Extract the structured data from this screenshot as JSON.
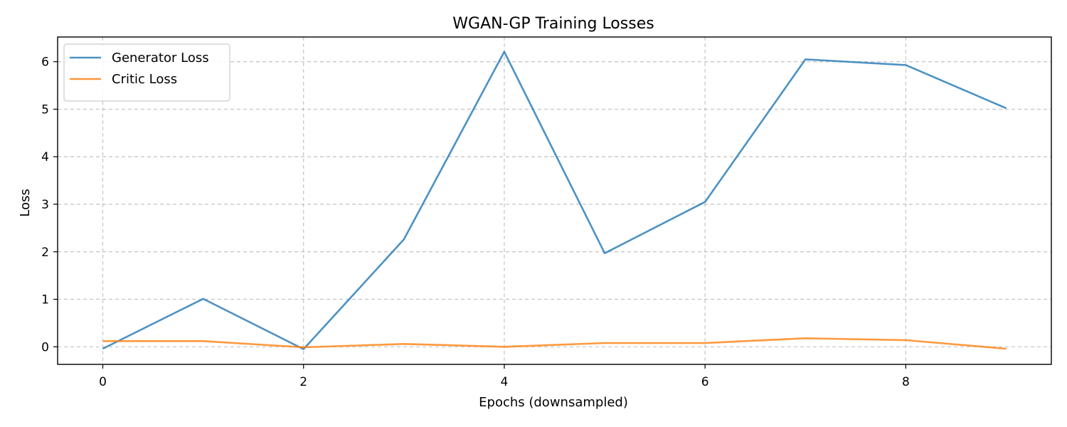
{
  "chart_data": {
    "type": "line",
    "title": "WGAN-GP Training Losses",
    "xlabel": "Epochs (downsampled)",
    "ylabel": "Loss",
    "x": [
      0,
      1,
      2,
      3,
      4,
      5,
      6,
      7,
      8,
      9
    ],
    "xlim": [
      -0.45,
      9.45
    ],
    "ylim": [
      -0.37,
      6.52
    ],
    "xticks": [
      0,
      2,
      4,
      6,
      8
    ],
    "yticks": [
      0,
      1,
      2,
      3,
      4,
      5,
      6
    ],
    "grid": true,
    "legend_position": "top-left",
    "series": [
      {
        "name": "Generator Loss",
        "color": "#1f77b4",
        "values": [
          -0.04,
          1.01,
          -0.05,
          2.26,
          6.21,
          1.97,
          3.05,
          6.05,
          5.93,
          5.02
        ]
      },
      {
        "name": "Critic Loss",
        "color": "#ff7f0e",
        "values": [
          0.12,
          0.12,
          -0.01,
          0.06,
          0.0,
          0.08,
          0.08,
          0.18,
          0.14,
          -0.04
        ]
      }
    ]
  }
}
